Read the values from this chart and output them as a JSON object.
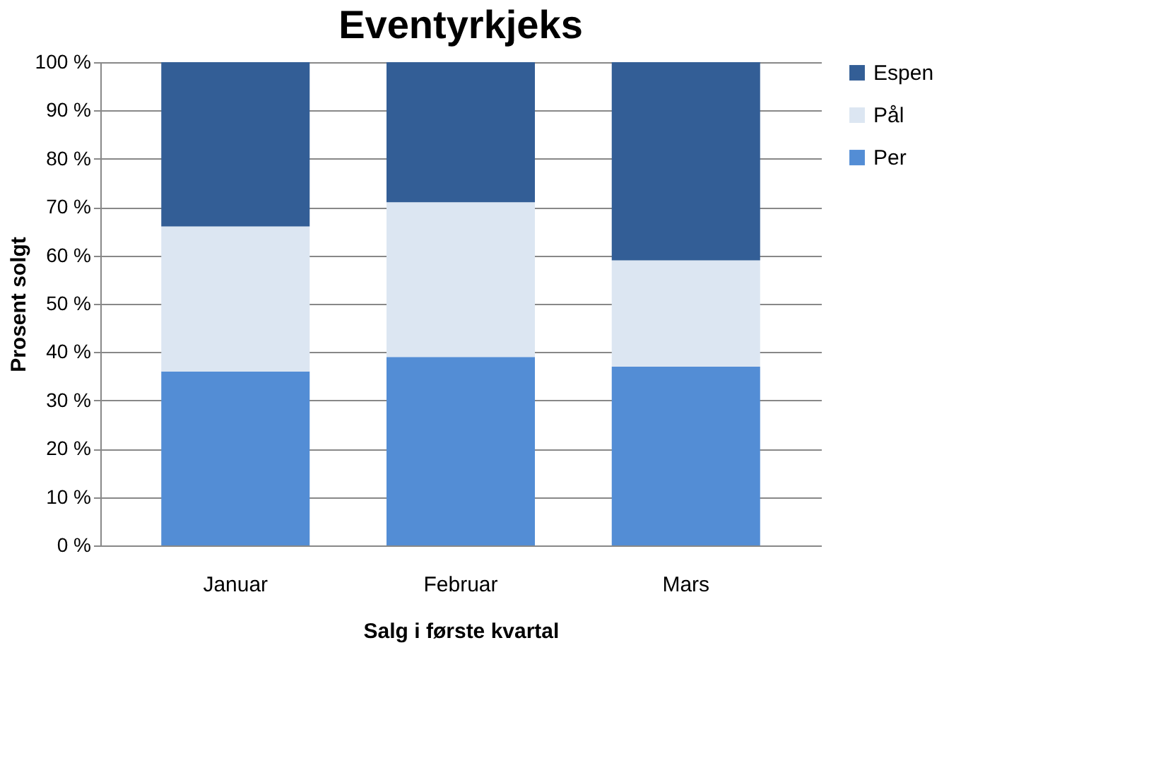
{
  "chart_data": {
    "type": "bar",
    "stacked": true,
    "title": "Eventyrkjeks",
    "xlabel": "Salg i første kvartal",
    "ylabel": "Prosent solgt",
    "categories": [
      "Januar",
      "Februar",
      "Mars"
    ],
    "series": [
      {
        "name": "Per",
        "color": "#538dd5",
        "values": [
          36,
          39,
          37
        ]
      },
      {
        "name": "Pål",
        "color": "#dce6f2",
        "values": [
          30,
          32,
          22
        ]
      },
      {
        "name": "Espen",
        "color": "#335e96",
        "values": [
          34,
          29,
          41
        ]
      }
    ],
    "ylim": [
      0,
      100
    ],
    "yticks": [
      {
        "value": 0,
        "label": "0 %"
      },
      {
        "value": 10,
        "label": "10 %"
      },
      {
        "value": 20,
        "label": "20 %"
      },
      {
        "value": 30,
        "label": "30 %"
      },
      {
        "value": 40,
        "label": "40 %"
      },
      {
        "value": 50,
        "label": "50 %"
      },
      {
        "value": 60,
        "label": "60 %"
      },
      {
        "value": 70,
        "label": "70 %"
      },
      {
        "value": 80,
        "label": "80 %"
      },
      {
        "value": 90,
        "label": "90 %"
      },
      {
        "value": 100,
        "label": "100 %"
      }
    ],
    "grid": "y",
    "legend": "right"
  }
}
